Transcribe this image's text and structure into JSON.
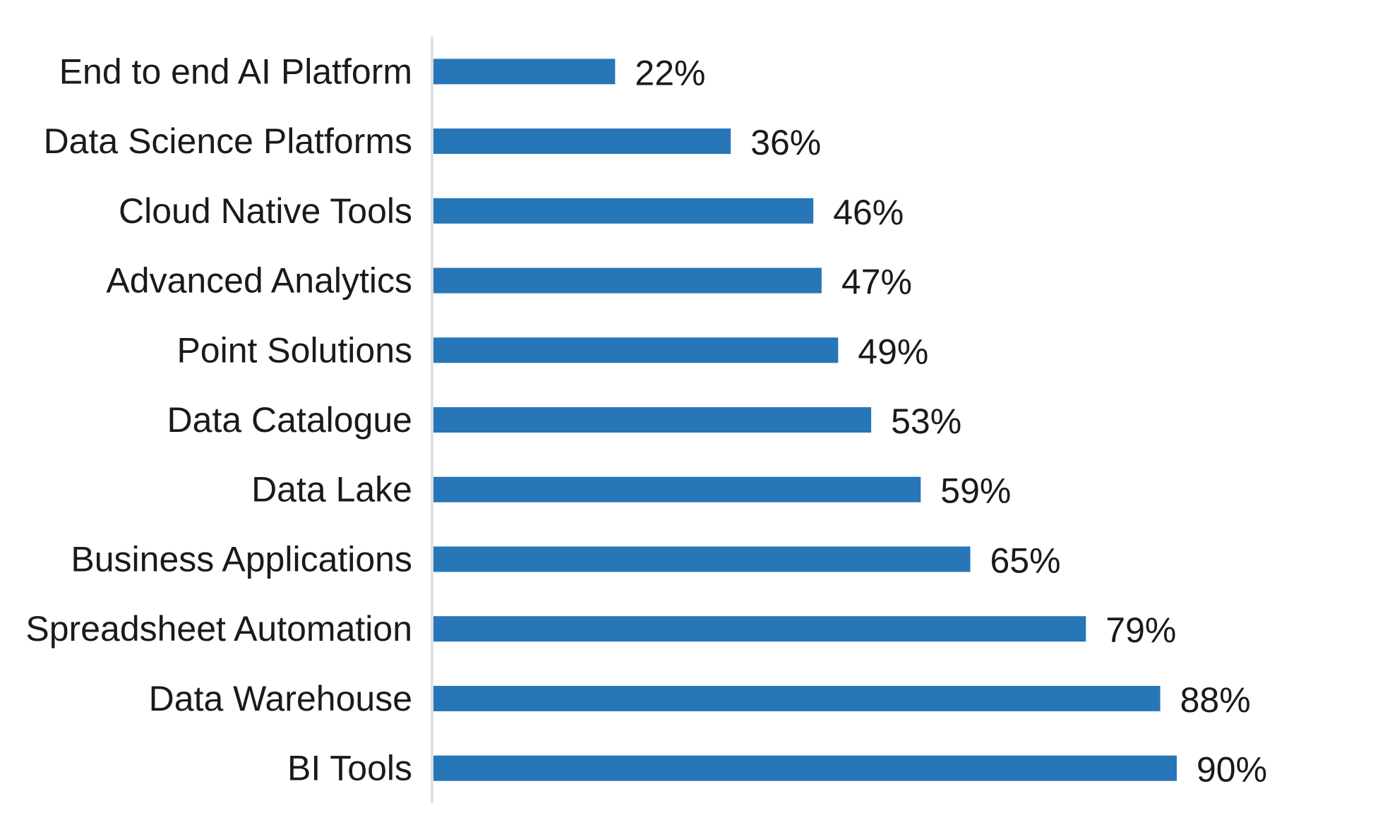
{
  "chart_data": {
    "type": "bar",
    "orientation": "horizontal",
    "categories": [
      "End to end AI Platform",
      "Data Science Platforms",
      "Cloud Native Tools",
      "Advanced Analytics",
      "Point Solutions",
      "Data Catalogue",
      "Data Lake",
      "Business Applications",
      "Spreadsheet Automation",
      "Data Warehouse",
      "BI Tools"
    ],
    "values": [
      22,
      36,
      46,
      47,
      49,
      53,
      59,
      65,
      79,
      88,
      90
    ],
    "value_labels": [
      "22%",
      "36%",
      "46%",
      "47%",
      "49%",
      "53%",
      "59%",
      "65%",
      "79%",
      "88%",
      "90%"
    ],
    "xlim": [
      0,
      100
    ],
    "grid": false,
    "legend": "none",
    "bar_color": "#2776b7",
    "axis_color": "#d9d9d9"
  }
}
